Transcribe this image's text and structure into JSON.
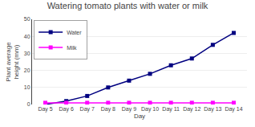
{
  "chart_data": {
    "type": "line",
    "title": "Watering tomato plants with water or milk",
    "x_label": "Day",
    "y_label": [
      "Plant average",
      "height (mm)"
    ],
    "categories": [
      "Day 5",
      "Day 6",
      "Day 7",
      "Day 8",
      "Day 9",
      "Day 10",
      "Day 11",
      "Day 12",
      "Day 13",
      "Day 14"
    ],
    "series": [
      {
        "name": "Water",
        "color": "#000080",
        "marker": "square",
        "values": [
          0,
          2,
          5,
          10,
          14,
          18,
          23,
          27,
          35,
          42
        ]
      },
      {
        "name": "Milk",
        "color": "#FF00FF",
        "marker": "square",
        "values": [
          1,
          1,
          1,
          1,
          1,
          1,
          1,
          1,
          1,
          1
        ]
      }
    ],
    "ylim": [
      0,
      50
    ],
    "yticks": [
      0,
      10,
      20,
      30,
      40,
      50
    ],
    "grid": "y",
    "legend": "upper left"
  }
}
